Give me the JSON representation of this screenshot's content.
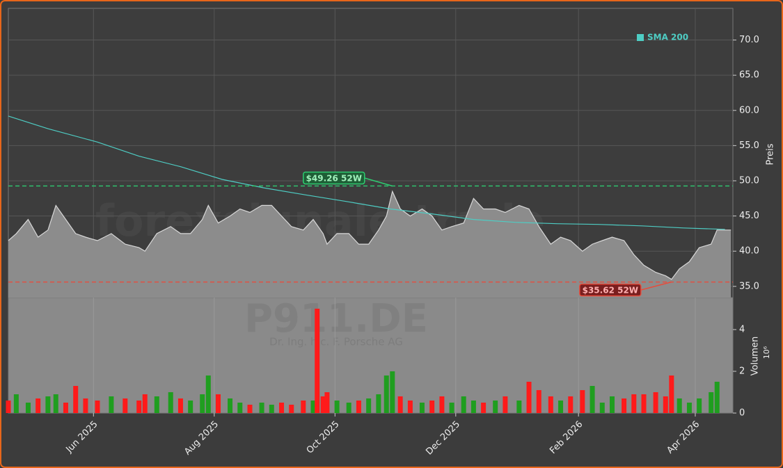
{
  "chart_data": [
    {
      "type": "area",
      "x": [
        -43,
        -39,
        -33,
        -28,
        -23,
        -19,
        -14,
        -9,
        -4,
        2,
        9,
        16,
        23,
        26,
        32,
        39,
        44,
        49,
        55,
        58,
        63,
        69,
        74,
        79,
        85,
        90,
        95,
        100,
        106,
        111,
        116,
        118,
        123,
        129,
        134,
        139,
        144,
        148,
        151,
        155,
        160,
        166,
        171,
        176,
        181,
        187,
        192,
        197,
        203,
        208,
        215,
        220,
        225,
        231,
        236,
        241,
        247,
        252,
        257,
        262,
        268,
        273,
        278,
        284,
        289,
        292,
        296,
        301,
        306,
        312,
        315,
        322
      ],
      "series": [
        {
          "color": "#8c8c8c",
          "values": [
            41.5,
            42.5,
            44.5,
            42,
            43,
            46.5,
            44.5,
            42.5,
            42,
            41.5,
            42.5,
            41,
            40.5,
            40,
            42.5,
            43.5,
            42.5,
            42.5,
            44.5,
            46.5,
            44,
            45,
            46,
            45.5,
            46.5,
            46.5,
            45,
            43.5,
            43,
            44.5,
            42.5,
            41,
            42.5,
            42.5,
            41,
            41,
            43,
            45,
            48.5,
            46,
            45,
            46,
            45,
            43,
            43.5,
            44,
            47.5,
            46,
            46,
            45.5,
            46.5,
            46,
            43.5,
            41,
            42,
            41.5,
            40,
            41,
            41.5,
            42,
            41.5,
            39.5,
            38,
            37,
            36.5,
            36,
            37.5,
            38.5,
            40.5,
            41,
            43,
            43
          ]
        },
        {
          "name": "SMA 200",
          "color": "#4ecdc4",
          "x": [
            -43,
            -23,
            2,
            23,
            44,
            65,
            86,
            107,
            129,
            150,
            171,
            192,
            213,
            234,
            255,
            277,
            298,
            319
          ],
          "values": [
            59.2,
            57.4,
            55.5,
            53.5,
            52,
            50.2,
            49,
            48,
            47,
            46,
            45.3,
            44.5,
            44.1,
            43.9,
            43.8,
            43.6,
            43.3,
            43.1
          ]
        }
      ],
      "ylabel": "Preis",
      "ylim": [
        33.4,
        74.5
      ],
      "yticks": [
        {
          "value": 35,
          "label": "35.0"
        },
        {
          "value": 40,
          "label": "40.0"
        },
        {
          "value": 45,
          "label": "45.0"
        },
        {
          "value": 50,
          "label": "50.0"
        },
        {
          "value": 55,
          "label": "55.0"
        },
        {
          "value": 60,
          "label": "60.0"
        },
        {
          "value": 65,
          "label": "65.0"
        },
        {
          "value": 70,
          "label": "70.0"
        }
      ],
      "xlim": [
        -43,
        323
      ],
      "xticks": [
        {
          "value": 0,
          "label": "Jun 2025"
        },
        {
          "value": 61,
          "label": "Aug 2025"
        },
        {
          "value": 122,
          "label": "Oct 2025"
        },
        {
          "value": 183,
          "label": "Dec 2025"
        },
        {
          "value": 245,
          "label": "Feb 2026"
        },
        {
          "value": 304,
          "label": "Apr 2026"
        }
      ],
      "grid": true,
      "legend": "upper right",
      "annotations": [
        {
          "text": "$49.26 52W",
          "value": 49.26,
          "x": 151,
          "color": "#2ecc71"
        },
        {
          "text": "$35.62 52W",
          "value": 35.62,
          "x": 292,
          "color": "#e74c3c"
        }
      ],
      "watermark": "forexsignale.trade"
    },
    {
      "type": "bar",
      "x": [
        -43,
        -39,
        -33,
        -28,
        -23,
        -19,
        -14,
        -9,
        -4,
        2,
        9,
        16,
        23,
        26,
        32,
        39,
        44,
        49,
        55,
        58,
        63,
        69,
        74,
        79,
        85,
        90,
        95,
        100,
        106,
        111,
        113,
        116,
        118,
        123,
        129,
        134,
        139,
        144,
        148,
        151,
        155,
        160,
        166,
        171,
        176,
        181,
        187,
        192,
        197,
        203,
        208,
        215,
        220,
        225,
        231,
        236,
        241,
        247,
        252,
        257,
        262,
        268,
        273,
        278,
        284,
        289,
        292,
        296,
        301,
        306,
        312,
        315
      ],
      "values": [
        0.6,
        0.9,
        0.5,
        0.7,
        0.8,
        0.9,
        0.5,
        1.3,
        0.7,
        0.6,
        0.8,
        0.7,
        0.6,
        0.9,
        0.8,
        1.0,
        0.7,
        0.6,
        0.9,
        1.8,
        0.9,
        0.7,
        0.5,
        0.4,
        0.5,
        0.4,
        0.5,
        0.4,
        0.6,
        0.6,
        5.0,
        0.8,
        1.0,
        0.6,
        0.5,
        0.6,
        0.7,
        0.9,
        1.8,
        2.0,
        0.8,
        0.6,
        0.5,
        0.6,
        0.8,
        0.5,
        0.8,
        0.6,
        0.5,
        0.6,
        0.8,
        0.6,
        1.5,
        1.1,
        0.8,
        0.6,
        0.8,
        1.1,
        1.3,
        0.5,
        0.8,
        0.7,
        0.9,
        0.9,
        1.0,
        0.8,
        1.8,
        0.7,
        0.5,
        0.7,
        1.0,
        1.5
      ],
      "up_color": "#1f9e1f",
      "down_color": "#ff1a1a",
      "ylabel": "Volumen",
      "scale_label": "10⁶",
      "ylim": [
        0,
        5.53
      ],
      "yticks": [
        0,
        2,
        4
      ],
      "watermark": "P911.DE",
      "watermark_subtitle": "Dr. Ing. h.c. F. Porsche AG"
    }
  ]
}
